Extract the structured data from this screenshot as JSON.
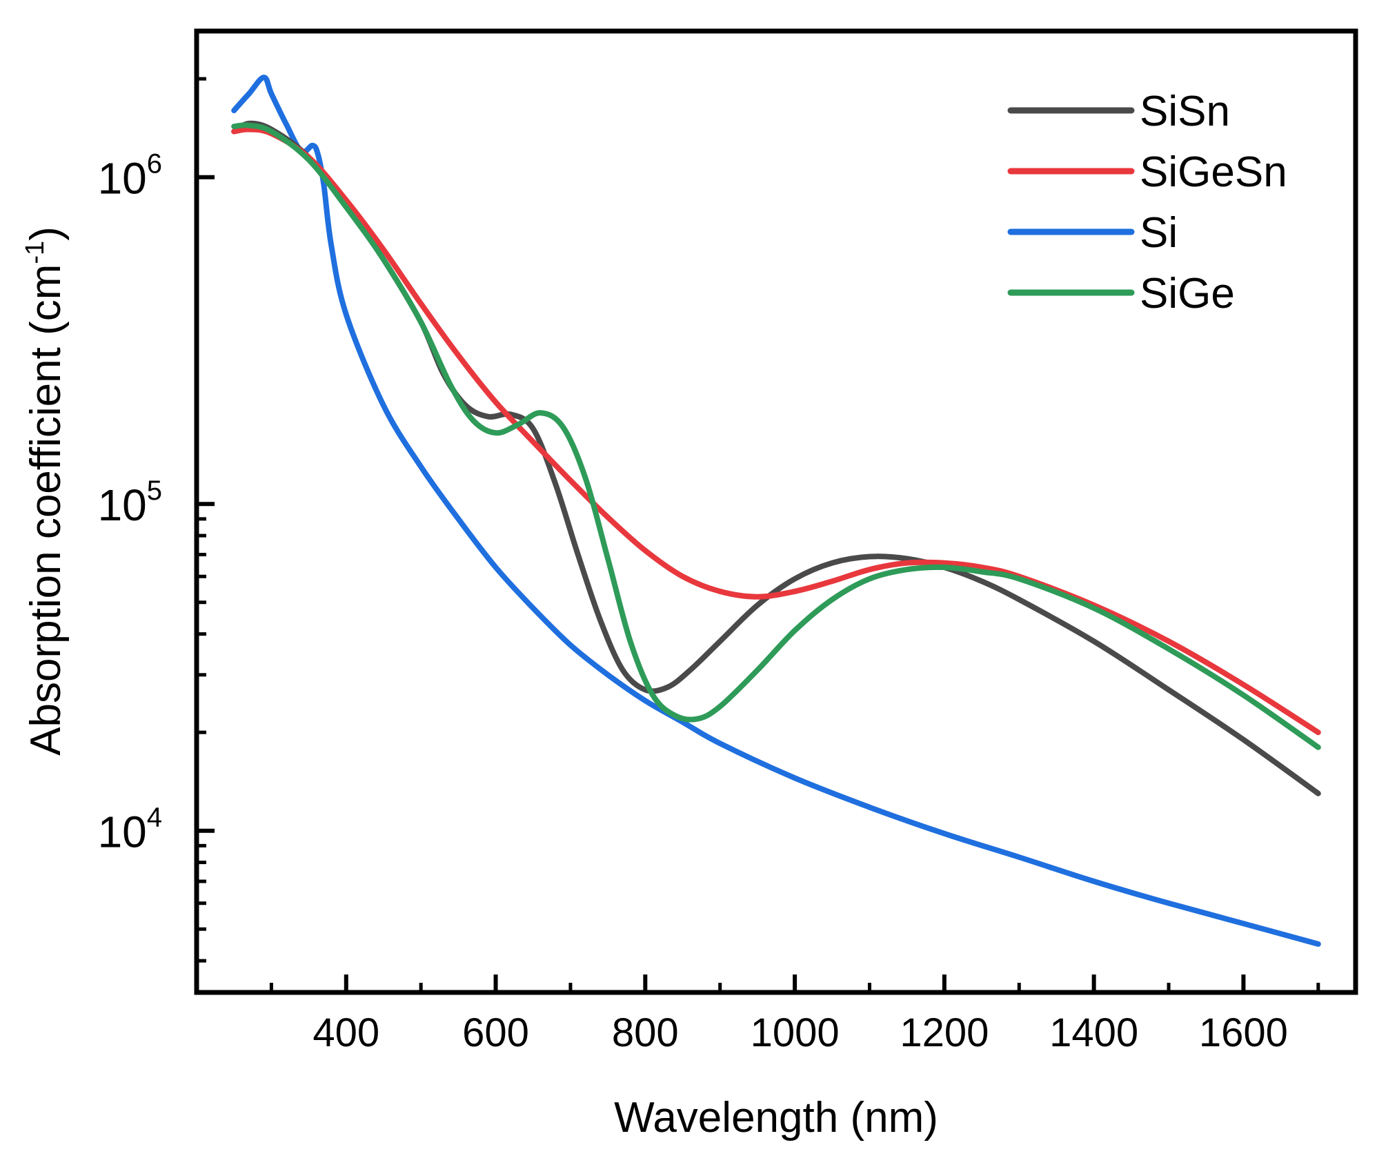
{
  "chart_data": {
    "type": "line",
    "title": "",
    "xlabel": "Wavelength (nm)",
    "ylabel": "Absorption coefficient (cm",
    "ylabel_sup": "-1",
    "ylabel_close": ")",
    "x_scale": "linear",
    "y_scale": "log",
    "xlim": [
      200,
      1750
    ],
    "ylim": [
      3200,
      2800000
    ],
    "x_major_ticks": [
      400,
      600,
      800,
      1000,
      1200,
      1400,
      1600
    ],
    "x_tick_labels": [
      "400",
      "600",
      "800",
      "1000",
      "1200",
      "1400",
      "1600"
    ],
    "x_minor_ticks": [
      300,
      500,
      700,
      900,
      1100,
      1300,
      1500,
      1700
    ],
    "y_major_ticks": [
      10000,
      100000,
      1000000
    ],
    "y_tick_labels": [
      {
        "base": "10",
        "exp": "4"
      },
      {
        "base": "10",
        "exp": "5"
      },
      {
        "base": "10",
        "exp": "6"
      }
    ],
    "y_minor_ticks": [
      4000,
      5000,
      6000,
      7000,
      8000,
      9000,
      20000,
      30000,
      40000,
      50000,
      60000,
      70000,
      80000,
      90000,
      2000000
    ],
    "legend_position": "top-right",
    "grid": false,
    "series": [
      {
        "name": "SiSn",
        "color": "#4a4a4a",
        "points": [
          [
            250,
            1380000
          ],
          [
            270,
            1460000
          ],
          [
            300,
            1400000
          ],
          [
            350,
            1150000
          ],
          [
            400,
            820000
          ],
          [
            450,
            560000
          ],
          [
            500,
            360000
          ],
          [
            530,
            250000
          ],
          [
            560,
            200000
          ],
          [
            590,
            185000
          ],
          [
            620,
            188000
          ],
          [
            650,
            170000
          ],
          [
            680,
            115000
          ],
          [
            710,
            70000
          ],
          [
            740,
            44000
          ],
          [
            770,
            31000
          ],
          [
            800,
            27000
          ],
          [
            830,
            27500
          ],
          [
            860,
            31000
          ],
          [
            900,
            38000
          ],
          [
            950,
            49000
          ],
          [
            1000,
            59000
          ],
          [
            1050,
            66000
          ],
          [
            1100,
            69000
          ],
          [
            1150,
            68000
          ],
          [
            1200,
            64000
          ],
          [
            1250,
            58000
          ],
          [
            1300,
            51000
          ],
          [
            1400,
            38000
          ],
          [
            1500,
            27000
          ],
          [
            1600,
            19000
          ],
          [
            1700,
            13000
          ]
        ]
      },
      {
        "name": "SiGeSn",
        "color": "#e8383d",
        "points": [
          [
            250,
            1380000
          ],
          [
            270,
            1400000
          ],
          [
            300,
            1360000
          ],
          [
            350,
            1150000
          ],
          [
            400,
            850000
          ],
          [
            450,
            600000
          ],
          [
            500,
            410000
          ],
          [
            550,
            285000
          ],
          [
            600,
            205000
          ],
          [
            650,
            155000
          ],
          [
            700,
            118000
          ],
          [
            750,
            91000
          ],
          [
            800,
            72000
          ],
          [
            850,
            60000
          ],
          [
            900,
            54000
          ],
          [
            950,
            52000
          ],
          [
            1000,
            54000
          ],
          [
            1050,
            58000
          ],
          [
            1100,
            63000
          ],
          [
            1150,
            66000
          ],
          [
            1200,
            66000
          ],
          [
            1250,
            64000
          ],
          [
            1300,
            60000
          ],
          [
            1400,
            49000
          ],
          [
            1500,
            38000
          ],
          [
            1600,
            28000
          ],
          [
            1700,
            20000
          ]
        ]
      },
      {
        "name": "Si",
        "color": "#1f6fdf",
        "points": [
          [
            250,
            1600000
          ],
          [
            270,
            1800000
          ],
          [
            290,
            2020000
          ],
          [
            300,
            1800000
          ],
          [
            320,
            1450000
          ],
          [
            340,
            1200000
          ],
          [
            355,
            1250000
          ],
          [
            362,
            1180000
          ],
          [
            370,
            950000
          ],
          [
            380,
            620000
          ],
          [
            400,
            380000
          ],
          [
            450,
            200000
          ],
          [
            500,
            130000
          ],
          [
            550,
            90000
          ],
          [
            600,
            64000
          ],
          [
            650,
            48000
          ],
          [
            700,
            37000
          ],
          [
            750,
            30000
          ],
          [
            800,
            25000
          ],
          [
            850,
            21500
          ],
          [
            900,
            18500
          ],
          [
            1000,
            14500
          ],
          [
            1100,
            11800
          ],
          [
            1200,
            9800
          ],
          [
            1300,
            8300
          ],
          [
            1400,
            7000
          ],
          [
            1500,
            6000
          ],
          [
            1600,
            5200
          ],
          [
            1700,
            4500
          ]
        ]
      },
      {
        "name": "SiGe",
        "color": "#2e9b58",
        "points": [
          [
            250,
            1430000
          ],
          [
            270,
            1440000
          ],
          [
            300,
            1380000
          ],
          [
            350,
            1130000
          ],
          [
            400,
            810000
          ],
          [
            450,
            560000
          ],
          [
            500,
            360000
          ],
          [
            540,
            230000
          ],
          [
            570,
            180000
          ],
          [
            600,
            165000
          ],
          [
            630,
            175000
          ],
          [
            660,
            190000
          ],
          [
            690,
            172000
          ],
          [
            720,
            120000
          ],
          [
            750,
            68000
          ],
          [
            780,
            38000
          ],
          [
            810,
            26000
          ],
          [
            840,
            22500
          ],
          [
            870,
            22000
          ],
          [
            900,
            24000
          ],
          [
            950,
            31000
          ],
          [
            1000,
            41000
          ],
          [
            1050,
            51000
          ],
          [
            1100,
            59000
          ],
          [
            1150,
            63000
          ],
          [
            1200,
            64000
          ],
          [
            1250,
            62000
          ],
          [
            1300,
            59000
          ],
          [
            1400,
            48000
          ],
          [
            1500,
            36000
          ],
          [
            1600,
            26000
          ],
          [
            1700,
            18000
          ]
        ]
      }
    ]
  }
}
